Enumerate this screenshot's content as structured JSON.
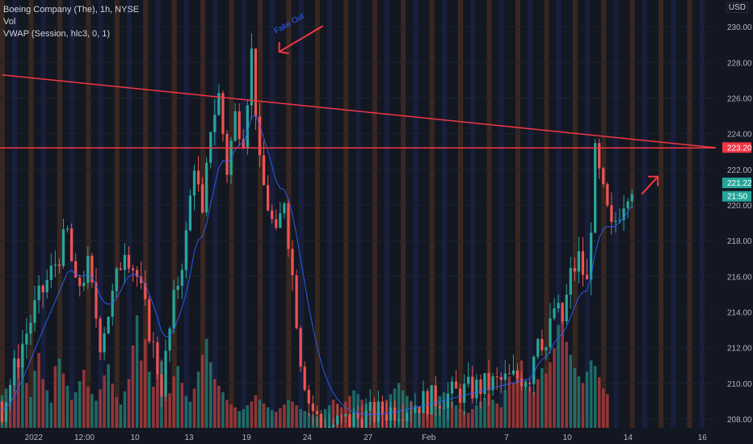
{
  "legend": {
    "title": "Boeing Company (The), 1h, NYSE",
    "vol": "Vol",
    "vwap": "VWAP (Session, hlc3, 0, 1)"
  },
  "currency": "USD",
  "colors": {
    "background": "#131722",
    "up": "#26a69a",
    "down": "#ef5350",
    "upVol": "#1f7a71",
    "downVol": "#a83b3b",
    "vwap": "#2962ff",
    "annotation": "#f23645",
    "arrowText": "#2962ff",
    "sessionPre": "#c05e1a",
    "sessionPost": "#2f3fa0"
  },
  "chart_data": {
    "type": "candlestick",
    "title": "Boeing Company (The), 1h, NYSE",
    "ylim": [
      207.5,
      231.5
    ],
    "yticks": [
      208,
      210,
      212,
      214,
      216,
      218,
      220,
      222,
      224,
      226,
      228,
      230
    ],
    "xticks": [
      "2022",
      "12:00",
      "10",
      "13",
      "19",
      "24",
      "27",
      "Feb",
      "7",
      "10",
      "14",
      "16"
    ],
    "price_labels": [
      {
        "value": 223.2,
        "text": "223.20",
        "color": "#f23645"
      },
      {
        "value": 221.22,
        "text": "221.22",
        "color": "#26a69a"
      },
      {
        "value": 220.6,
        "text": "21:50",
        "color": "#26a69a"
      }
    ],
    "close_path": [
      [
        0,
        208.5
      ],
      [
        4,
        211.5
      ],
      [
        8,
        214.2
      ],
      [
        12,
        216.2
      ],
      [
        16,
        218.4
      ],
      [
        18,
        215.2
      ],
      [
        21,
        216.5
      ],
      [
        24,
        212.4
      ],
      [
        27,
        214.8
      ],
      [
        30,
        217.8
      ],
      [
        33,
        216.0
      ],
      [
        36,
        213.0
      ],
      [
        39,
        209.8
      ],
      [
        42,
        214.5
      ],
      [
        45,
        218.2
      ],
      [
        47,
        222.5
      ],
      [
        49,
        219.0
      ],
      [
        51,
        224.5
      ],
      [
        53,
        226.1
      ],
      [
        55,
        222.0
      ],
      [
        57,
        225.0
      ],
      [
        59,
        224.0
      ],
      [
        61,
        228.5
      ],
      [
        62,
        225.5
      ],
      [
        63,
        222.0
      ],
      [
        65,
        220.0
      ],
      [
        67,
        218.0
      ],
      [
        69,
        220.5
      ],
      [
        71,
        216.0
      ],
      [
        73,
        211.5
      ],
      [
        75,
        209.0
      ],
      [
        77,
        208.0
      ],
      [
        78,
        207.5
      ],
      [
        129,
        210.5
      ],
      [
        131,
        213.0
      ],
      [
        133,
        212.0
      ],
      [
        135,
        214.2
      ],
      [
        137,
        213.5
      ],
      [
        139,
        216.0
      ],
      [
        141,
        217.0
      ],
      [
        143,
        215.5
      ],
      [
        145,
        222.7
      ],
      [
        147,
        220.5
      ],
      [
        149,
        218.5
      ],
      [
        151,
        219.8
      ],
      [
        153,
        221.0
      ],
      [
        154,
        221.22
      ]
    ],
    "volume_heights": [
      35,
      42,
      28,
      55,
      70,
      90,
      48,
      33,
      61,
      80,
      52,
      40,
      27,
      66,
      74,
      58,
      45,
      30,
      38,
      50,
      62,
      44,
      36,
      29,
      41,
      56,
      68,
      47,
      33,
      25,
      39,
      52,
      88,
      120,
      72,
      95,
      60,
      44,
      58,
      71,
      49,
      37,
      55,
      66,
      48,
      34,
      28,
      42,
      60,
      78,
      95,
      70,
      52,
      45,
      38,
      30,
      25,
      22,
      18,
      20,
      24,
      28,
      35,
      30,
      26,
      22,
      19,
      17,
      21,
      25,
      30,
      28,
      24,
      20,
      18,
      16,
      14,
      12,
      15,
      20,
      24,
      30,
      26,
      22,
      28,
      34,
      40,
      36,
      30,
      26,
      22,
      20,
      18,
      24,
      30,
      36,
      42,
      48,
      40,
      34,
      28,
      24,
      20,
      18,
      22,
      26,
      30,
      34,
      38,
      32,
      28,
      24,
      20,
      18,
      16,
      20,
      24,
      28,
      32,
      36,
      30,
      26,
      22,
      40,
      55,
      48,
      60,
      72,
      50,
      44,
      38,
      52,
      64,
      58,
      70,
      85,
      110,
      125,
      92,
      78,
      64,
      55,
      48,
      60,
      72,
      66,
      54,
      42,
      36
    ],
    "lines": [
      {
        "name": "downtrend",
        "from": [
          0,
          227.3
        ],
        "to": [
          175,
          223.2
        ]
      },
      {
        "name": "resistance",
        "value": 223.2
      }
    ],
    "annotations": [
      {
        "text": "Fake Out",
        "near_x": 65,
        "near_y": 229.5
      }
    ]
  }
}
